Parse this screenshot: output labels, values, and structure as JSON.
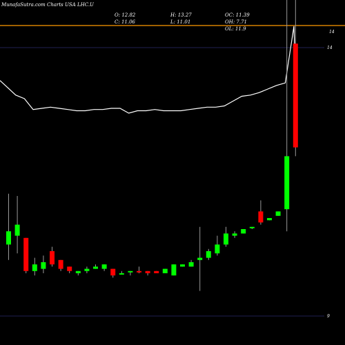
{
  "header": {
    "title": "MunafaSutra.com Charts USA LHC.U",
    "ohlc": {
      "open": "O: 12.82",
      "high": "H: 13.27",
      "close": "C: 11.06",
      "low": "L: 11.01"
    },
    "stats": {
      "oc": "OC: 11.39",
      "oh": "OH: 7.71",
      "ol": "OL: 11.9"
    }
  },
  "colors": {
    "background": "#000000",
    "up": "#00ff00",
    "down": "#ff0000",
    "wick": "#9a9a9a",
    "overlay_line": "#ffffff",
    "top_rule": "#ff9900",
    "h_lines": "#2a2a6e"
  },
  "chart_data": {
    "type": "candlestick",
    "y_ticks": [
      "14",
      "14",
      "9"
    ],
    "candles": [
      {
        "o": 10.98,
        "h": 11.21,
        "l": 10.91,
        "c": 11.04,
        "dir": "up"
      },
      {
        "o": 11.07,
        "h": 11.2,
        "l": 10.94,
        "c": 11.02,
        "dir": "up"
      },
      {
        "o": 11.01,
        "h": 11.01,
        "l": 10.85,
        "c": 10.86,
        "dir": "down"
      },
      {
        "o": 10.86,
        "h": 10.92,
        "l": 10.84,
        "c": 10.89,
        "dir": "up"
      },
      {
        "o": 10.87,
        "h": 10.93,
        "l": 10.85,
        "c": 10.9,
        "dir": "up"
      },
      {
        "o": 10.95,
        "h": 10.97,
        "l": 10.88,
        "c": 10.89,
        "dir": "down"
      },
      {
        "o": 10.91,
        "h": 10.91,
        "l": 10.86,
        "c": 10.87,
        "dir": "down"
      },
      {
        "o": 10.88,
        "h": 10.88,
        "l": 10.85,
        "c": 10.86,
        "dir": "down"
      },
      {
        "o": 10.85,
        "h": 10.86,
        "l": 10.84,
        "c": 10.86,
        "dir": "up"
      },
      {
        "o": 10.86,
        "h": 10.88,
        "l": 10.85,
        "c": 10.87,
        "dir": "up"
      },
      {
        "o": 10.87,
        "h": 10.89,
        "l": 10.87,
        "c": 10.88,
        "dir": "up"
      },
      {
        "o": 10.87,
        "h": 10.89,
        "l": 10.86,
        "c": 10.89,
        "dir": "up"
      },
      {
        "o": 10.87,
        "h": 10.87,
        "l": 10.83,
        "c": 10.84,
        "dir": "down"
      },
      {
        "o": 10.85,
        "h": 10.86,
        "l": 10.85,
        "c": 10.85,
        "dir": "up"
      },
      {
        "o": 10.86,
        "h": 10.86,
        "l": 10.84,
        "c": 10.86,
        "dir": "up"
      },
      {
        "o": 10.86,
        "h": 10.88,
        "l": 10.85,
        "c": 10.86,
        "dir": "down"
      },
      {
        "o": 10.86,
        "h": 10.86,
        "l": 10.84,
        "c": 10.85,
        "dir": "down"
      },
      {
        "o": 10.86,
        "h": 10.86,
        "l": 10.85,
        "c": 10.85,
        "dir": "down"
      },
      {
        "o": 10.85,
        "h": 10.87,
        "l": 10.85,
        "c": 10.87,
        "dir": "up"
      },
      {
        "o": 10.84,
        "h": 10.89,
        "l": 10.84,
        "c": 10.89,
        "dir": "up"
      },
      {
        "o": 10.88,
        "h": 10.89,
        "l": 10.88,
        "c": 10.89,
        "dir": "up"
      },
      {
        "o": 10.88,
        "h": 10.91,
        "l": 10.88,
        "c": 10.9,
        "dir": "up"
      },
      {
        "o": 10.91,
        "h": 11.06,
        "l": 10.77,
        "c": 10.92,
        "dir": "up"
      },
      {
        "o": 10.92,
        "h": 10.96,
        "l": 10.91,
        "c": 10.95,
        "dir": "up"
      },
      {
        "o": 10.94,
        "h": 11.02,
        "l": 10.93,
        "c": 10.98,
        "dir": "up"
      },
      {
        "o": 10.98,
        "h": 11.06,
        "l": 10.97,
        "c": 11.03,
        "dir": "up"
      },
      {
        "o": 11.02,
        "h": 11.04,
        "l": 11.01,
        "c": 11.03,
        "dir": "up"
      },
      {
        "o": 11.03,
        "h": 11.05,
        "l": 11.03,
        "c": 11.05,
        "dir": "up"
      },
      {
        "o": 11.06,
        "h": 11.06,
        "l": 11.05,
        "c": 11.06,
        "dir": "up"
      },
      {
        "o": 11.13,
        "h": 11.18,
        "l": 11.07,
        "c": 11.08,
        "dir": "down"
      },
      {
        "o": 11.09,
        "h": 11.1,
        "l": 11.09,
        "c": 11.1,
        "dir": "up"
      },
      {
        "o": 11.11,
        "h": 11.13,
        "l": 11.11,
        "c": 11.13,
        "dir": "up"
      },
      {
        "o": 11.14,
        "h": 13.27,
        "l": 11.04,
        "c": 11.38,
        "dir": "up"
      },
      {
        "o": 11.89,
        "h": 12.82,
        "l": 11.38,
        "c": 11.42,
        "dir": "down"
      }
    ],
    "overlay_line": [
      12.82,
      12.7,
      12.67,
      12.58,
      12.59,
      12.6,
      12.59,
      12.58,
      12.57,
      12.57,
      12.58,
      12.58,
      12.59,
      12.59,
      12.55,
      12.57,
      12.57,
      12.58,
      12.57,
      12.57,
      12.57,
      12.58,
      12.59,
      12.6,
      12.6,
      12.61,
      12.65,
      12.69,
      12.7,
      12.72,
      12.75,
      12.78,
      12.8,
      13.27,
      12.85
    ]
  }
}
